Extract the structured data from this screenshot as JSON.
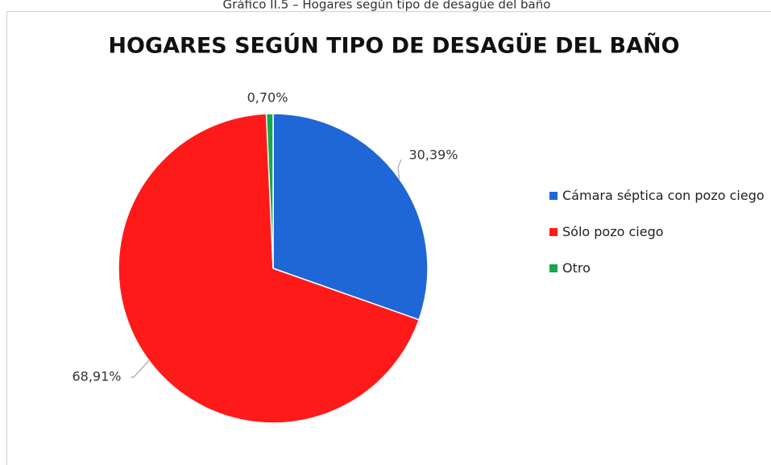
{
  "caption": "Gráfico II.5 – Hogares según tipo de desagüe del baño",
  "chart_data": {
    "type": "pie",
    "title": "HOGARES SEGÚN TIPO DE DESAGÜE DEL BAÑO",
    "categories": [
      "Cámara séptica con pozo ciego",
      "Sólo pozo ciego",
      "Otro"
    ],
    "values": [
      30.39,
      68.91,
      0.7
    ],
    "value_labels": [
      "30,39%",
      "68,91%",
      "0,70%"
    ],
    "colors": [
      "#1f66d6",
      "#ff1a1a",
      "#1aa64a"
    ],
    "legend": "right"
  }
}
